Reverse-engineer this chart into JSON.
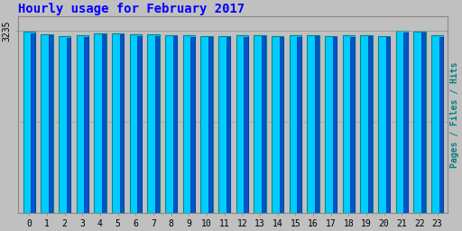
{
  "title": "Hourly usage for February 2017",
  "title_color": "#0000FF",
  "title_fontsize": 10,
  "background_color": "#C0C0C0",
  "plot_bg_color": "#C0C0C0",
  "bar_cyan_color": "#00CCFF",
  "bar_cyan_edge": "#008888",
  "bar_blue_color": "#0055CC",
  "bar_blue_edge": "#003399",
  "right_ylabel_text": "Pages / Files / Hits",
  "right_ylabel_color": "#008080",
  "ytick_value": 3235,
  "ylim_min": 0,
  "ylim_max": 3500,
  "hours": [
    0,
    1,
    2,
    3,
    4,
    5,
    6,
    7,
    8,
    9,
    10,
    11,
    12,
    13,
    14,
    15,
    16,
    17,
    18,
    19,
    20,
    21,
    22,
    23
  ],
  "cyan_values": [
    3220,
    3175,
    3140,
    3155,
    3200,
    3195,
    3175,
    3175,
    3160,
    3155,
    3148,
    3150,
    3158,
    3162,
    3150,
    3158,
    3162,
    3150,
    3158,
    3162,
    3150,
    3235,
    3228,
    3158
  ],
  "blue_values": [
    3200,
    3155,
    3118,
    3135,
    3178,
    3172,
    3152,
    3150,
    3138,
    3130,
    3122,
    3128,
    3135,
    3140,
    3125,
    3133,
    3140,
    3125,
    3133,
    3140,
    3125,
    3215,
    3208,
    3133
  ],
  "figwidth": 5.12,
  "figheight": 2.56,
  "dpi": 100
}
